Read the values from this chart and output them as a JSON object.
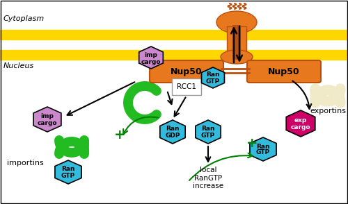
{
  "figsize": [
    5.0,
    2.94
  ],
  "dpi": 100,
  "bg_color": "#ffffff",
  "membrane_color": "#FFD700",
  "nup50_color": "#E8781E",
  "nup50_dark": "#B85010",
  "imp_cargo_color": "#CC88CC",
  "exp_cargo_color": "#CC0066",
  "ran_color": "#33BBDD",
  "importin_color": "#22BB22",
  "rcc1_bg": "#FFFFFF",
  "rcc1_border": "#999999",
  "exportin_color": "#F0EAC8",
  "cytoplasm_label": "Cytoplasm",
  "nucleus_label": "Nucleus",
  "importins_label": "importins",
  "exportins_label": "exportins"
}
